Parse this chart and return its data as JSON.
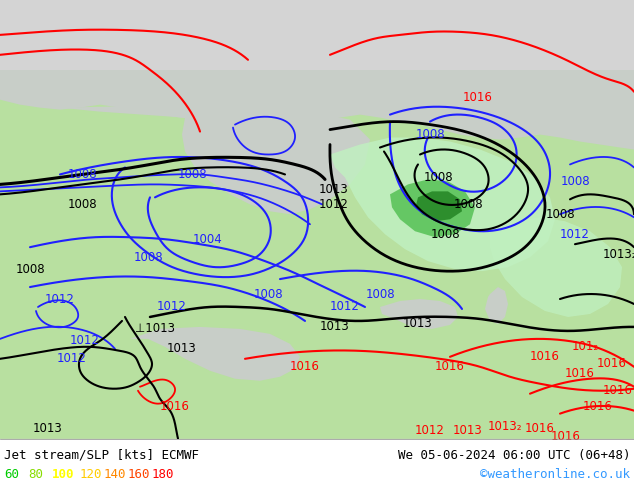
{
  "title_left": "Jet stream/SLP [kts] ECMWF",
  "title_right": "We 05-06-2024 06:00 UTC (06+48)",
  "credit": "©weatheronline.co.uk",
  "legend_values": [
    "60",
    "80",
    "100",
    "120",
    "140",
    "160",
    "180"
  ],
  "legend_colors": [
    "#00cc00",
    "#88dd00",
    "#ffff00",
    "#ffcc00",
    "#ff8800",
    "#ff4400",
    "#ff0000"
  ],
  "fig_width": 6.34,
  "fig_height": 4.9,
  "dpi": 100,
  "bg_white": "#ffffff",
  "land_green": "#b8e0a0",
  "sea_gray": "#c8cec8",
  "arctic_gray": "#d8d8d8",
  "jet_light_green": "#c0f0c0",
  "jet_mid_green": "#80e080",
  "jet_dark_green": "#40b840",
  "contour_blue": "#2020ff",
  "contour_black": "#000000",
  "contour_red": "#ff0000"
}
